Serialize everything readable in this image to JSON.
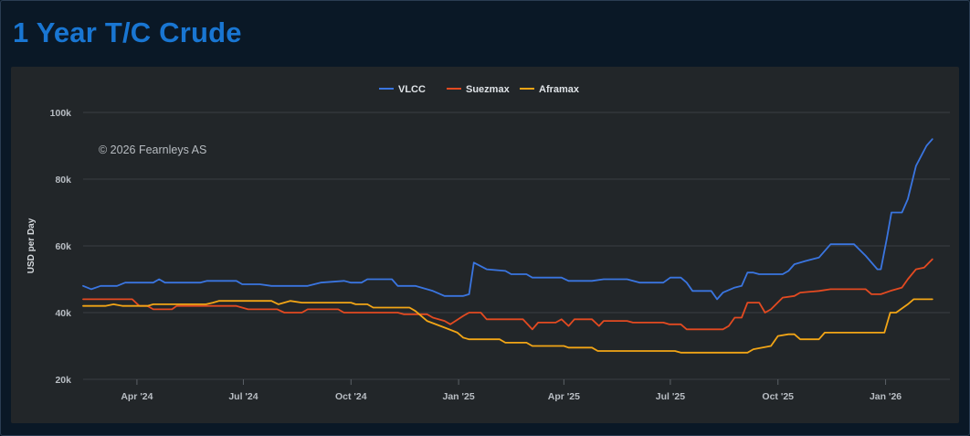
{
  "title": "1 Year T/C Crude",
  "chart_data": {
    "type": "line",
    "title": "1 Year T/C Crude",
    "xlabel": "",
    "ylabel": "USD per Day",
    "y_ticks": [
      "20k",
      "40k",
      "60k",
      "80k",
      "100k"
    ],
    "x_ticks": [
      "Apr '24",
      "Jul '24",
      "Oct '24",
      "Jan '25",
      "Apr '25",
      "Jul '25",
      "Oct '25",
      "Jan '26"
    ],
    "xlim": [
      "2024-02-15",
      "2026-02-25"
    ],
    "ylim": [
      20000,
      100000
    ],
    "grid": true,
    "legend_position": "top-center",
    "watermark": "© 2026 Fearnleys AS",
    "series": [
      {
        "name": "VLCC",
        "color": "#3a75e0",
        "points": [
          [
            "2024-02-15",
            48000
          ],
          [
            "2024-02-22",
            47000
          ],
          [
            "2024-03-01",
            48000
          ],
          [
            "2024-03-15",
            48000
          ],
          [
            "2024-03-22",
            49000
          ],
          [
            "2024-04-15",
            49000
          ],
          [
            "2024-04-20",
            50000
          ],
          [
            "2024-04-25",
            49000
          ],
          [
            "2024-05-25",
            49000
          ],
          [
            "2024-05-31",
            49500
          ],
          [
            "2024-06-25",
            49500
          ],
          [
            "2024-06-30",
            48500
          ],
          [
            "2024-07-15",
            48500
          ],
          [
            "2024-07-25",
            48000
          ],
          [
            "2024-08-25",
            48000
          ],
          [
            "2024-09-05",
            49000
          ],
          [
            "2024-09-25",
            49500
          ],
          [
            "2024-10-01",
            49000
          ],
          [
            "2024-10-10",
            49000
          ],
          [
            "2024-10-15",
            50000
          ],
          [
            "2024-11-05",
            50000
          ],
          [
            "2024-11-10",
            48000
          ],
          [
            "2024-11-25",
            48000
          ],
          [
            "2024-12-10",
            46500
          ],
          [
            "2024-12-20",
            45000
          ],
          [
            "2025-01-05",
            45000
          ],
          [
            "2025-01-10",
            45500
          ],
          [
            "2025-01-14",
            55000
          ],
          [
            "2025-01-25",
            53000
          ],
          [
            "2025-02-10",
            52500
          ],
          [
            "2025-02-15",
            51500
          ],
          [
            "2025-02-28",
            51500
          ],
          [
            "2025-03-05",
            50500
          ],
          [
            "2025-03-30",
            50500
          ],
          [
            "2025-04-05",
            49500
          ],
          [
            "2025-04-25",
            49500
          ],
          [
            "2025-05-05",
            50000
          ],
          [
            "2025-05-25",
            50000
          ],
          [
            "2025-06-05",
            49000
          ],
          [
            "2025-06-25",
            49000
          ],
          [
            "2025-07-01",
            50500
          ],
          [
            "2025-07-10",
            50500
          ],
          [
            "2025-07-15",
            49000
          ],
          [
            "2025-07-20",
            46500
          ],
          [
            "2025-08-05",
            46500
          ],
          [
            "2025-08-10",
            44000
          ],
          [
            "2025-08-15",
            46000
          ],
          [
            "2025-08-25",
            47500
          ],
          [
            "2025-08-31",
            48000
          ],
          [
            "2025-09-05",
            52000
          ],
          [
            "2025-09-10",
            52000
          ],
          [
            "2025-09-15",
            51500
          ],
          [
            "2025-10-05",
            51500
          ],
          [
            "2025-10-10",
            52500
          ],
          [
            "2025-10-15",
            54500
          ],
          [
            "2025-10-25",
            55500
          ],
          [
            "2025-11-05",
            56500
          ],
          [
            "2025-11-15",
            60500
          ],
          [
            "2025-11-30",
            60500
          ],
          [
            "2025-12-05",
            60500
          ],
          [
            "2025-12-15",
            57000
          ],
          [
            "2025-12-25",
            53000
          ],
          [
            "2025-12-28",
            53000
          ],
          [
            "2026-01-02",
            62000
          ],
          [
            "2026-01-06",
            70000
          ],
          [
            "2026-01-15",
            70000
          ],
          [
            "2026-01-20",
            74000
          ],
          [
            "2026-01-27",
            84000
          ],
          [
            "2026-02-05",
            90000
          ],
          [
            "2026-02-10",
            92000
          ]
        ]
      },
      {
        "name": "Suezmax",
        "color": "#e34a21",
        "points": [
          [
            "2024-02-15",
            44000
          ],
          [
            "2024-03-28",
            44000
          ],
          [
            "2024-04-03",
            42000
          ],
          [
            "2024-04-10",
            42000
          ],
          [
            "2024-04-15",
            41000
          ],
          [
            "2024-05-01",
            41000
          ],
          [
            "2024-05-05",
            42000
          ],
          [
            "2024-06-25",
            42000
          ],
          [
            "2024-07-05",
            41000
          ],
          [
            "2024-07-30",
            41000
          ],
          [
            "2024-08-05",
            40000
          ],
          [
            "2024-08-20",
            40000
          ],
          [
            "2024-08-25",
            41000
          ],
          [
            "2024-09-20",
            41000
          ],
          [
            "2024-09-25",
            40000
          ],
          [
            "2024-11-10",
            40000
          ],
          [
            "2024-11-15",
            39500
          ],
          [
            "2024-12-05",
            39500
          ],
          [
            "2024-12-10",
            38500
          ],
          [
            "2024-12-20",
            37500
          ],
          [
            "2024-12-25",
            36500
          ],
          [
            "2025-01-05",
            39000
          ],
          [
            "2025-01-10",
            40000
          ],
          [
            "2025-01-20",
            40000
          ],
          [
            "2025-01-25",
            38000
          ],
          [
            "2025-02-25",
            38000
          ],
          [
            "2025-03-05",
            35000
          ],
          [
            "2025-03-10",
            37000
          ],
          [
            "2025-03-25",
            37000
          ],
          [
            "2025-03-30",
            38000
          ],
          [
            "2025-04-05",
            36000
          ],
          [
            "2025-04-10",
            38000
          ],
          [
            "2025-04-25",
            38000
          ],
          [
            "2025-05-01",
            36000
          ],
          [
            "2025-05-05",
            37500
          ],
          [
            "2025-05-25",
            37500
          ],
          [
            "2025-05-30",
            37000
          ],
          [
            "2025-06-25",
            37000
          ],
          [
            "2025-06-30",
            36500
          ],
          [
            "2025-07-10",
            36500
          ],
          [
            "2025-07-15",
            35000
          ],
          [
            "2025-08-15",
            35000
          ],
          [
            "2025-08-20",
            36000
          ],
          [
            "2025-08-25",
            38500
          ],
          [
            "2025-08-31",
            38500
          ],
          [
            "2025-09-05",
            43000
          ],
          [
            "2025-09-15",
            43000
          ],
          [
            "2025-09-20",
            40000
          ],
          [
            "2025-09-25",
            41000
          ],
          [
            "2025-10-05",
            44500
          ],
          [
            "2025-10-15",
            45000
          ],
          [
            "2025-10-20",
            46000
          ],
          [
            "2025-11-05",
            46500
          ],
          [
            "2025-11-15",
            47000
          ],
          [
            "2025-12-15",
            47000
          ],
          [
            "2025-12-20",
            45500
          ],
          [
            "2025-12-28",
            45500
          ],
          [
            "2026-01-05",
            46500
          ],
          [
            "2026-01-15",
            47500
          ],
          [
            "2026-01-20",
            50000
          ],
          [
            "2026-01-27",
            53000
          ],
          [
            "2026-02-03",
            53500
          ],
          [
            "2026-02-10",
            56000
          ]
        ]
      },
      {
        "name": "Aframax",
        "color": "#f2a516",
        "points": [
          [
            "2024-02-15",
            42000
          ],
          [
            "2024-03-05",
            42000
          ],
          [
            "2024-03-12",
            42500
          ],
          [
            "2024-03-20",
            42000
          ],
          [
            "2024-04-10",
            42000
          ],
          [
            "2024-04-15",
            42500
          ],
          [
            "2024-05-30",
            42500
          ],
          [
            "2024-06-05",
            43000
          ],
          [
            "2024-06-10",
            43500
          ],
          [
            "2024-07-25",
            43500
          ],
          [
            "2024-07-31",
            42500
          ],
          [
            "2024-08-10",
            43500
          ],
          [
            "2024-08-20",
            43000
          ],
          [
            "2024-10-01",
            43000
          ],
          [
            "2024-10-05",
            42500
          ],
          [
            "2024-10-15",
            42500
          ],
          [
            "2024-10-20",
            41500
          ],
          [
            "2024-11-20",
            41500
          ],
          [
            "2024-11-25",
            40500
          ],
          [
            "2024-12-05",
            37500
          ],
          [
            "2024-12-20",
            35500
          ],
          [
            "2024-12-31",
            34000
          ],
          [
            "2025-01-05",
            32500
          ],
          [
            "2025-01-10",
            32000
          ],
          [
            "2025-02-05",
            32000
          ],
          [
            "2025-02-10",
            31000
          ],
          [
            "2025-02-28",
            31000
          ],
          [
            "2025-03-05",
            30000
          ],
          [
            "2025-04-01",
            30000
          ],
          [
            "2025-04-05",
            29500
          ],
          [
            "2025-04-25",
            29500
          ],
          [
            "2025-04-30",
            28500
          ],
          [
            "2025-07-05",
            28500
          ],
          [
            "2025-07-10",
            28000
          ],
          [
            "2025-09-05",
            28000
          ],
          [
            "2025-09-10",
            29000
          ],
          [
            "2025-09-25",
            30000
          ],
          [
            "2025-10-01",
            33000
          ],
          [
            "2025-10-10",
            33500
          ],
          [
            "2025-10-15",
            33500
          ],
          [
            "2025-10-20",
            32000
          ],
          [
            "2025-11-05",
            32000
          ],
          [
            "2025-11-10",
            34000
          ],
          [
            "2025-12-31",
            34000
          ],
          [
            "2026-01-05",
            40000
          ],
          [
            "2026-01-10",
            40000
          ],
          [
            "2026-01-20",
            42500
          ],
          [
            "2026-01-25",
            44000
          ],
          [
            "2026-02-10",
            44000
          ]
        ]
      }
    ]
  }
}
